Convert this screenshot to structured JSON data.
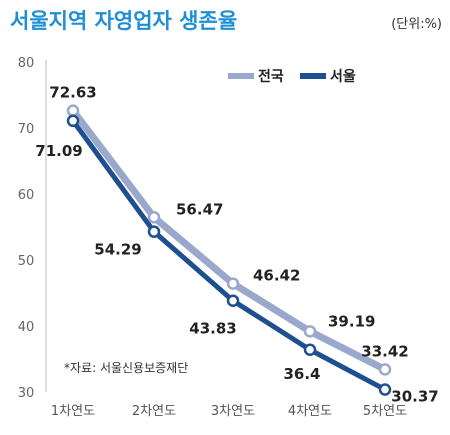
{
  "title": "서울지역 자영업자 생존율",
  "unit": "(단위:%)",
  "source": "*자료: 서울신용보증재단",
  "chart_data": {
    "type": "line",
    "title": "서울지역 자영업자 생존율",
    "xlabel": "",
    "ylabel": "",
    "categories": [
      "1차연도",
      "2차연도",
      "3차연도",
      "4차연도",
      "5차연도"
    ],
    "ylim": [
      30,
      80
    ],
    "yticks": [
      "30",
      "40",
      "50",
      "60",
      "70",
      "80"
    ],
    "legend_position": "top-right",
    "grid": false,
    "series": [
      {
        "name": "전국",
        "color": "#9aa8cc",
        "values": [
          72.63,
          56.47,
          46.42,
          39.19,
          33.42
        ],
        "labels": [
          "72.63",
          "56.47",
          "46.42",
          "39.19",
          "33.42"
        ]
      },
      {
        "name": "서울",
        "color": "#1d4f91",
        "values": [
          71.09,
          54.29,
          43.83,
          36.4,
          30.37
        ],
        "labels": [
          "71.09",
          "54.29",
          "43.83",
          "36.4",
          "30.37"
        ]
      }
    ]
  }
}
